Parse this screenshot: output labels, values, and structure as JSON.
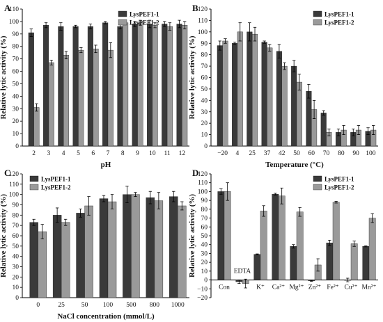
{
  "colors": {
    "series1": "#3a3a3a",
    "series2": "#9a9a9a",
    "axis": "#000000",
    "errorbar": "#000000"
  },
  "chart_data": [
    {
      "panel": "A",
      "type": "bar",
      "xlabel": "pH",
      "ylabel": "Relative lytic activity (%)",
      "ylim": [
        0,
        110
      ],
      "ytick_step": 10,
      "yticks_suffix": "",
      "categories": [
        "2",
        "3",
        "4",
        "5",
        "6",
        "7",
        "8",
        "9",
        "10",
        "11",
        "12"
      ],
      "legend": "top-right",
      "series": [
        {
          "name": "LysPEF1-1",
          "values": [
            91,
            97,
            96,
            96,
            96,
            99,
            96,
            98,
            98,
            98,
            98
          ],
          "errors": [
            3,
            2,
            3,
            1,
            2,
            1,
            2,
            2,
            3,
            2,
            3
          ]
        },
        {
          "name": "LysPEF1-2",
          "values": [
            31,
            67,
            73,
            77,
            78,
            77,
            99,
            99,
            97,
            96,
            97
          ],
          "errors": [
            3,
            2,
            3,
            2,
            3,
            6,
            1,
            2,
            2,
            3,
            3
          ]
        }
      ],
      "annotations": []
    },
    {
      "panel": "B",
      "type": "bar",
      "xlabel": "Temperature (°C)",
      "ylabel": "Relative lytic activity (%)",
      "ylim": [
        0,
        120
      ],
      "ytick_step": 10,
      "categories": [
        "−20",
        "4",
        "25",
        "37",
        "42",
        "50",
        "60",
        "70",
        "80",
        "90",
        "100"
      ],
      "legend": "top-right",
      "series": [
        {
          "name": "LysPEF1-1",
          "values": [
            88,
            90,
            100,
            91,
            83,
            70,
            48,
            29,
            12,
            12,
            13
          ],
          "errors": [
            4,
            1,
            8,
            1,
            6,
            5,
            6,
            2,
            3,
            3,
            3
          ]
        },
        {
          "name": "LysPEF1-2",
          "values": [
            92,
            100,
            98,
            86,
            70,
            56,
            32,
            12,
            14,
            14,
            14
          ],
          "errors": [
            2,
            8,
            6,
            3,
            3,
            7,
            8,
            3,
            4,
            4,
            4
          ]
        }
      ],
      "annotations": []
    },
    {
      "panel": "C",
      "type": "bar",
      "xlabel": "NaCl concentration (mmol/L)",
      "ylabel": "Relative lytic activity (%)",
      "ylim": [
        0,
        120
      ],
      "ytick_step": 10,
      "categories": [
        "0",
        "25",
        "50",
        "100",
        "500",
        "800",
        "1000"
      ],
      "legend": "top-left",
      "series": [
        {
          "name": "LysPEF1-1",
          "values": [
            73,
            80,
            82,
            96,
            100,
            97,
            98
          ],
          "errors": [
            3,
            7,
            4,
            3,
            8,
            6,
            5
          ]
        },
        {
          "name": "LysPEF1-2",
          "values": [
            64,
            73,
            89,
            93,
            100,
            94,
            89
          ],
          "errors": [
            7,
            3,
            9,
            7,
            2,
            8,
            4
          ]
        }
      ],
      "annotations": []
    },
    {
      "panel": "D",
      "type": "bar",
      "xlabel": "",
      "ylabel": "Relative lytic activity (%)",
      "ylim": [
        -20,
        120
      ],
      "ytick_step": 10,
      "categories": [
        "Con",
        "EDTA",
        "K⁺",
        "Ca²⁺",
        "Mg²⁺",
        "Zn²⁺",
        "Fe²⁺",
        "Cu²⁺",
        "Mn²⁺"
      ],
      "legend": "top-right",
      "series": [
        {
          "name": "LysPEF1-1",
          "values": [
            100,
            -2,
            29,
            97,
            38,
            -1,
            42,
            0,
            38
          ],
          "errors": [
            3,
            2,
            0.5,
            1,
            2,
            0.5,
            3,
            2,
            0.5
          ]
        },
        {
          "name": "LysPEF1-2",
          "values": [
            100,
            -4,
            78,
            95,
            77,
            17,
            88,
            41,
            70
          ],
          "errors": [
            10,
            5,
            6,
            9,
            5,
            7,
            1,
            3,
            5
          ]
        }
      ],
      "annotations": []
    }
  ]
}
